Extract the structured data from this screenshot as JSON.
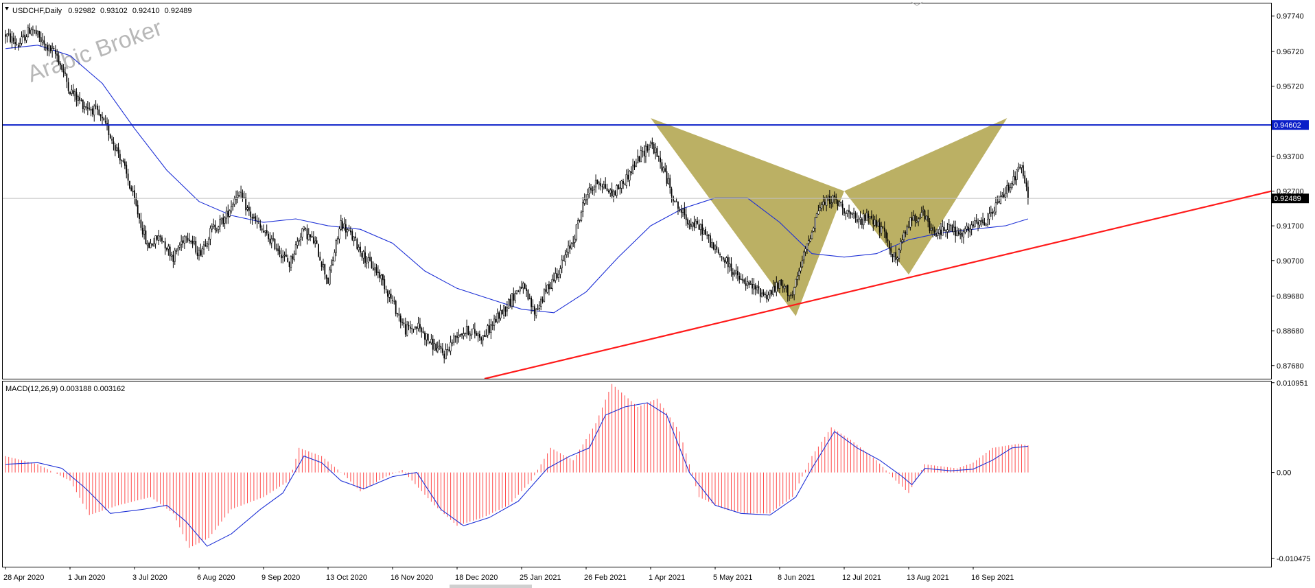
{
  "header": {
    "symbol": "USDCHF,Daily",
    "open": "0.92982",
    "high": "0.93102",
    "low": "0.92410",
    "close": "0.92489"
  },
  "watermark": "Arabic Broker",
  "colors": {
    "candle": "#000000",
    "ma": "#1c2fd6",
    "level_line": "#0a1ec8",
    "trendline": "#ff1a1a",
    "pattern_fill": "#b7ac5c",
    "histogram": "#ff4a4a",
    "signal": "#1c2fd6",
    "current_price_bg": "#000000",
    "level_bg": "#0a1ec8"
  },
  "chart_data": [
    {
      "type": "candlestick",
      "name": "price",
      "x_labels": [
        "28 Apr 2020",
        "1 Jun 2020",
        "3 Jul 2020",
        "6 Aug 2020",
        "9 Sep 2020",
        "13 Oct 2020",
        "16 Nov 2020",
        "18 Dec 2020",
        "25 Jan 2021",
        "26 Feb 2021",
        "1 Apr 2021",
        "5 May 2021",
        "8 Jun 2021",
        "12 Jul 2021",
        "13 Aug 2021",
        "16 Sep 2021"
      ],
      "y_ticks": [
        "0.97740",
        "0.96720",
        "0.95720",
        "0.93700",
        "0.92700",
        "0.91700",
        "0.90700",
        "0.89680",
        "0.88680",
        "0.87680"
      ],
      "ylim": [
        0.873,
        0.981
      ],
      "current_price": "0.92489",
      "horizontal_level": "0.94602",
      "anchors": [
        [
          0,
          0.972
        ],
        [
          8,
          0.969
        ],
        [
          16,
          0.974
        ],
        [
          24,
          0.969
        ],
        [
          32,
          0.966
        ],
        [
          40,
          0.956
        ],
        [
          48,
          0.952
        ],
        [
          56,
          0.95
        ],
        [
          64,
          0.944
        ],
        [
          72,
          0.936
        ],
        [
          80,
          0.924
        ],
        [
          88,
          0.911
        ],
        [
          96,
          0.914
        ],
        [
          104,
          0.908
        ],
        [
          112,
          0.915
        ],
        [
          120,
          0.909
        ],
        [
          128,
          0.916
        ],
        [
          136,
          0.919
        ],
        [
          144,
          0.927
        ],
        [
          152,
          0.92
        ],
        [
          160,
          0.915
        ],
        [
          168,
          0.911
        ],
        [
          176,
          0.906
        ],
        [
          184,
          0.916
        ],
        [
          192,
          0.912
        ],
        [
          200,
          0.901
        ],
        [
          208,
          0.918
        ],
        [
          216,
          0.913
        ],
        [
          224,
          0.907
        ],
        [
          232,
          0.903
        ],
        [
          240,
          0.895
        ],
        [
          248,
          0.887
        ],
        [
          256,
          0.888
        ],
        [
          264,
          0.883
        ],
        [
          272,
          0.88
        ],
        [
          280,
          0.886
        ],
        [
          288,
          0.887
        ],
        [
          296,
          0.885
        ],
        [
          304,
          0.89
        ],
        [
          312,
          0.895
        ],
        [
          320,
          0.9
        ],
        [
          328,
          0.892
        ],
        [
          336,
          0.899
        ],
        [
          344,
          0.905
        ],
        [
          352,
          0.913
        ],
        [
          360,
          0.926
        ],
        [
          368,
          0.93
        ],
        [
          376,
          0.926
        ],
        [
          384,
          0.93
        ],
        [
          392,
          0.936
        ],
        [
          400,
          0.941
        ],
        [
          408,
          0.933
        ],
        [
          416,
          0.923
        ],
        [
          424,
          0.918
        ],
        [
          432,
          0.916
        ],
        [
          440,
          0.91
        ],
        [
          448,
          0.906
        ],
        [
          456,
          0.901
        ],
        [
          464,
          0.899
        ],
        [
          472,
          0.897
        ],
        [
          480,
          0.9
        ],
        [
          488,
          0.897
        ],
        [
          496,
          0.91
        ],
        [
          504,
          0.922
        ],
        [
          512,
          0.925
        ],
        [
          520,
          0.922
        ],
        [
          528,
          0.918
        ],
        [
          536,
          0.92
        ],
        [
          544,
          0.915
        ],
        [
          552,
          0.907
        ],
        [
          560,
          0.918
        ],
        [
          568,
          0.921
        ],
        [
          576,
          0.914
        ],
        [
          584,
          0.917
        ],
        [
          592,
          0.914
        ],
        [
          600,
          0.917
        ],
        [
          608,
          0.918
        ],
        [
          616,
          0.924
        ],
        [
          624,
          0.93
        ],
        [
          630,
          0.934
        ],
        [
          634,
          0.9249
        ]
      ],
      "moving_average": [
        [
          0,
          0.968
        ],
        [
          20,
          0.969
        ],
        [
          40,
          0.966
        ],
        [
          60,
          0.958
        ],
        [
          80,
          0.945
        ],
        [
          100,
          0.933
        ],
        [
          120,
          0.924
        ],
        [
          140,
          0.92
        ],
        [
          160,
          0.918
        ],
        [
          180,
          0.919
        ],
        [
          200,
          0.917
        ],
        [
          220,
          0.916
        ],
        [
          240,
          0.912
        ],
        [
          260,
          0.904
        ],
        [
          280,
          0.899
        ],
        [
          300,
          0.896
        ],
        [
          320,
          0.893
        ],
        [
          340,
          0.892
        ],
        [
          360,
          0.898
        ],
        [
          380,
          0.908
        ],
        [
          400,
          0.917
        ],
        [
          420,
          0.922
        ],
        [
          440,
          0.925
        ],
        [
          460,
          0.925
        ],
        [
          480,
          0.918
        ],
        [
          500,
          0.909
        ],
        [
          520,
          0.908
        ],
        [
          540,
          0.909
        ],
        [
          560,
          0.913
        ],
        [
          580,
          0.915
        ],
        [
          600,
          0.916
        ],
        [
          620,
          0.917
        ],
        [
          634,
          0.919
        ]
      ],
      "trendline": [
        [
          297,
          0.873
        ],
        [
          785,
          0.927
        ]
      ],
      "harmonic_pattern": [
        [
          [
            400,
            0.948
          ],
          [
            490,
            0.891
          ],
          [
            520,
            0.927
          ]
        ],
        [
          [
            520,
            0.927
          ],
          [
            560,
            0.903
          ],
          [
            621,
            0.948
          ]
        ]
      ]
    },
    {
      "type": "macd",
      "name": "MACD(12,26,9)",
      "label": "MACD(12,26,9) 0.003188 0.003162",
      "y_ticks": [
        "0.010951",
        "0.00",
        "-0.010475"
      ],
      "ylim": [
        -0.0115,
        0.0111
      ],
      "histogram": [
        [
          0,
          0.002
        ],
        [
          20,
          0.001
        ],
        [
          40,
          -0.001
        ],
        [
          52,
          -0.0052
        ],
        [
          70,
          -0.004
        ],
        [
          90,
          -0.003
        ],
        [
          104,
          -0.005
        ],
        [
          114,
          -0.0092
        ],
        [
          126,
          -0.008
        ],
        [
          140,
          -0.0045
        ],
        [
          160,
          -0.003
        ],
        [
          176,
          -0.001
        ],
        [
          182,
          0.003
        ],
        [
          196,
          0.002
        ],
        [
          210,
          -0.0003
        ],
        [
          220,
          -0.0023
        ],
        [
          236,
          -0.0005
        ],
        [
          246,
          0.0003
        ],
        [
          266,
          -0.004
        ],
        [
          280,
          -0.0065
        ],
        [
          296,
          -0.0055
        ],
        [
          312,
          -0.004
        ],
        [
          326,
          -0.001
        ],
        [
          338,
          0.003
        ],
        [
          352,
          0.0015
        ],
        [
          366,
          0.006
        ],
        [
          376,
          0.0108
        ],
        [
          392,
          0.008
        ],
        [
          404,
          0.009
        ],
        [
          418,
          0.005
        ],
        [
          430,
          -0.003
        ],
        [
          446,
          -0.0045
        ],
        [
          460,
          -0.005
        ],
        [
          474,
          -0.005
        ],
        [
          488,
          -0.003
        ],
        [
          500,
          0.002
        ],
        [
          512,
          0.0055
        ],
        [
          524,
          0.004
        ],
        [
          540,
          0.0015
        ],
        [
          552,
          -0.001
        ],
        [
          560,
          -0.0025
        ],
        [
          570,
          0.001
        ],
        [
          590,
          0.0005
        ],
        [
          600,
          0.0012
        ],
        [
          612,
          0.003
        ],
        [
          628,
          0.0035
        ],
        [
          634,
          0.0033
        ]
      ],
      "signal": [
        [
          0,
          0.001
        ],
        [
          20,
          0.0012
        ],
        [
          35,
          0.0005
        ],
        [
          50,
          -0.002
        ],
        [
          65,
          -0.005
        ],
        [
          85,
          -0.0045
        ],
        [
          100,
          -0.004
        ],
        [
          112,
          -0.006
        ],
        [
          125,
          -0.009
        ],
        [
          140,
          -0.0075
        ],
        [
          158,
          -0.0045
        ],
        [
          172,
          -0.0025
        ],
        [
          185,
          0.002
        ],
        [
          196,
          0.0012
        ],
        [
          208,
          -0.001
        ],
        [
          222,
          -0.002
        ],
        [
          240,
          -0.0005
        ],
        [
          255,
          0.0
        ],
        [
          270,
          -0.0045
        ],
        [
          284,
          -0.0065
        ],
        [
          300,
          -0.0055
        ],
        [
          318,
          -0.0035
        ],
        [
          336,
          0.0005
        ],
        [
          350,
          0.002
        ],
        [
          362,
          0.003
        ],
        [
          372,
          0.007
        ],
        [
          384,
          0.008
        ],
        [
          398,
          0.0085
        ],
        [
          410,
          0.007
        ],
        [
          424,
          0.0
        ],
        [
          440,
          -0.004
        ],
        [
          456,
          -0.005
        ],
        [
          474,
          -0.0052
        ],
        [
          490,
          -0.003
        ],
        [
          500,
          0.0005
        ],
        [
          514,
          0.005
        ],
        [
          528,
          0.003
        ],
        [
          542,
          0.0015
        ],
        [
          556,
          -0.0005
        ],
        [
          562,
          -0.0015
        ],
        [
          570,
          0.0005
        ],
        [
          586,
          0.0002
        ],
        [
          600,
          0.0004
        ],
        [
          612,
          0.0015
        ],
        [
          624,
          0.003
        ],
        [
          634,
          0.0032
        ]
      ]
    }
  ]
}
